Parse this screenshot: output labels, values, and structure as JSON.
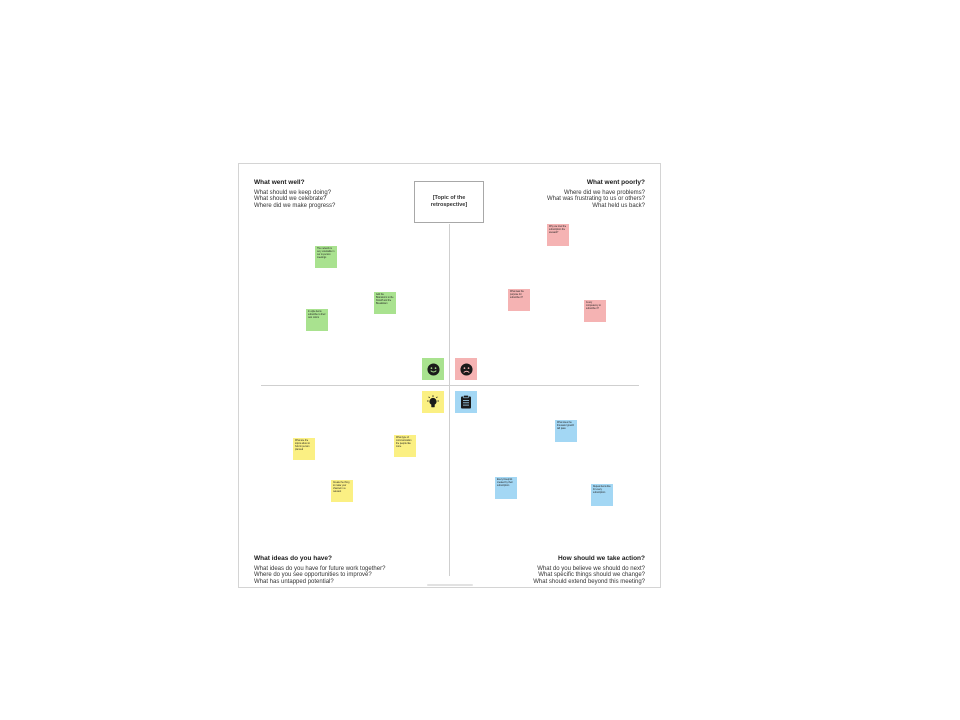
{
  "board": {
    "topic": "[Topic of the retrospective]",
    "quadrants": {
      "well": {
        "title": "What went well?",
        "lines": [
          "What should we keep doing?",
          "What should we celebrate?",
          "Where did we make progress?"
        ]
      },
      "poorly": {
        "title": "What went poorly?",
        "lines": [
          "Where did we have problems?",
          "What was frustrating to us or others?",
          "What held us back?"
        ]
      },
      "ideas": {
        "title": "What ideas do you have?",
        "lines": [
          "What ideas do you have for future work together?",
          "Where do you see opportunities to improve?",
          "What has untapped potential?"
        ]
      },
      "action": {
        "title": "How should we take action?",
        "lines": [
          "What do you believe we should do next?",
          "What specific things should we change?",
          "What should extend beyond this meeting?"
        ]
      }
    },
    "icons": {
      "well": {
        "name": "smile-icon",
        "bg": "#a9e28f"
      },
      "poorly": {
        "name": "frown-icon",
        "bg": "#f5b3b3"
      },
      "ideas": {
        "name": "lightbulb-icon",
        "bg": "#fbf083"
      },
      "action": {
        "name": "clipboard-icon",
        "bg": "#a3d7f4"
      }
    },
    "colors": {
      "green": "#a9e28f",
      "red": "#f5b3b3",
      "yellow": "#fbf083",
      "blue": "#a3d7f4"
    },
    "notes": {
      "green": [
        "The network is very unreliable in our in-person meetings",
        "Add the Brainstorm to the Kickoff and the Breakdown",
        "In-style items subscribe to their own colors"
      ],
      "red": [
        "Why we tried the subscription the steward?",
        "What was the purpose for subscribe it?",
        "Is any competency to subscribe it?"
      ],
      "yellow": [
        "What are the topics about to hold in person planned",
        "What type of communication the people like more",
        "Create the thing to make your channel in a relevant"
      ],
      "blue": [
        "What does the thousand growth will pass",
        "Every blueprint created by their subscription",
        "Repeat items like for every subscription"
      ]
    }
  }
}
